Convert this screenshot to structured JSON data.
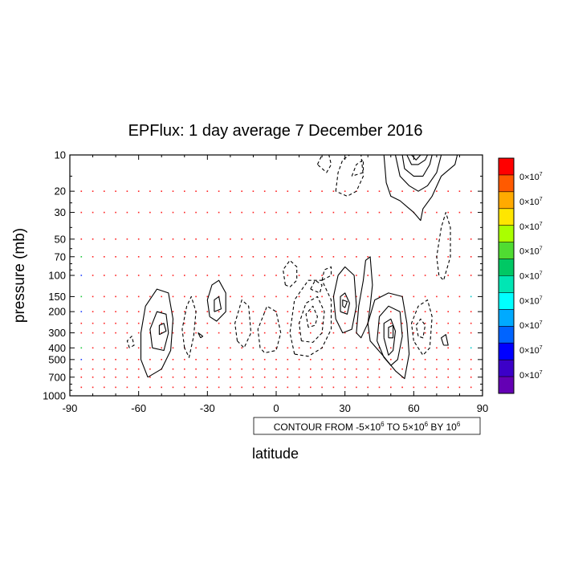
{
  "chart_data": {
    "type": "contour",
    "title": "EPFlux: 1 day average 7 December  2016",
    "xlabel": "latitude",
    "ylabel": "pressure (mb)",
    "xlim": [
      -90,
      90
    ],
    "ylim": [
      1000,
      10
    ],
    "y_scale": "log",
    "x_ticks": [
      "-90",
      "-60",
      "-30",
      "0",
      "30",
      "60",
      "90"
    ],
    "x_tick_values": [
      -90,
      -60,
      -30,
      0,
      30,
      60,
      90
    ],
    "y_ticks": [
      "10",
      "20",
      "30",
      "50",
      "70",
      "100",
      "150",
      "200",
      "300",
      "400",
      "500",
      "700",
      "1000"
    ],
    "y_tick_values": [
      10,
      20,
      30,
      50,
      70,
      100,
      150,
      200,
      300,
      400,
      500,
      700,
      1000
    ],
    "contour_info": {
      "prefix": "CONTOUR FROM -5",
      "times1": "×10",
      "exp1": "6",
      "mid": " TO 5",
      "times2": "×10",
      "exp2": "6",
      "by": " BY 10",
      "exp3": "6"
    },
    "colorbar": {
      "labels": [
        "0×10",
        "0×10",
        "0×10",
        "0×10",
        "0×10",
        "0×10",
        "0×10",
        "0×10",
        "0×10"
      ],
      "exponent": "7",
      "colors": [
        "#ff0000",
        "#ff5a00",
        "#ffaa00",
        "#ffe600",
        "#aaff00",
        "#50dc32",
        "#00c864",
        "#00e6b4",
        "#00ffff",
        "#00aaff",
        "#0064ff",
        "#0000ff",
        "#3c00c8",
        "#6400b4"
      ]
    },
    "arrow_lats": [
      -85,
      -80,
      -75,
      -70,
      -65,
      -60,
      -55,
      -50,
      -45,
      -40,
      -35,
      -30,
      -25,
      -20,
      -15,
      -10,
      -5,
      0,
      5,
      10,
      15,
      20,
      25,
      30,
      35,
      40,
      45,
      50,
      55,
      60,
      65,
      70,
      75,
      80,
      85
    ],
    "arrow_levels": [
      20,
      30,
      50,
      70,
      100,
      150,
      200,
      250,
      300,
      400,
      500,
      600,
      700,
      850
    ],
    "contours": [
      {
        "style": "solid",
        "points": [
          [
            -56,
            700
          ],
          [
            -59,
            500
          ],
          [
            -59,
            300
          ],
          [
            -57,
            180
          ],
          [
            -52,
            130
          ],
          [
            -47,
            140
          ],
          [
            -45,
            230
          ],
          [
            -46,
            420
          ],
          [
            -50,
            600
          ],
          [
            -56,
            700
          ]
        ]
      },
      {
        "style": "solid",
        "points": [
          [
            -54,
            400
          ],
          [
            -55,
            280
          ],
          [
            -52,
            200
          ],
          [
            -48,
            210
          ],
          [
            -47,
            300
          ],
          [
            -49,
            420
          ],
          [
            -54,
            400
          ]
        ]
      },
      {
        "style": "solid",
        "points": [
          [
            -51,
            310
          ],
          [
            -51,
            260
          ],
          [
            -49,
            250
          ],
          [
            -48,
            290
          ],
          [
            -51,
            310
          ]
        ]
      },
      {
        "style": "dashed",
        "points": [
          [
            -40,
            400
          ],
          [
            -41,
            280
          ],
          [
            -39,
            180
          ],
          [
            -37,
            150
          ],
          [
            -35,
            200
          ],
          [
            -36,
            320
          ],
          [
            -38,
            480
          ],
          [
            -40,
            400
          ]
        ]
      },
      {
        "style": "dashed",
        "points": [
          [
            -64,
            400
          ],
          [
            -65,
            350
          ],
          [
            -63,
            320
          ],
          [
            -62,
            380
          ],
          [
            -64,
            400
          ]
        ]
      },
      {
        "style": "solid",
        "points": [
          [
            -33,
            330
          ],
          [
            -34,
            300
          ],
          [
            -32,
            320
          ],
          [
            -33,
            330
          ]
        ]
      },
      {
        "style": "solid",
        "points": [
          [
            -29,
            220
          ],
          [
            -30,
            160
          ],
          [
            -28,
            120
          ],
          [
            -25,
            110
          ],
          [
            -22,
            140
          ],
          [
            -22,
            200
          ],
          [
            -26,
            240
          ],
          [
            -29,
            220
          ]
        ]
      },
      {
        "style": "solid",
        "points": [
          [
            -27,
            200
          ],
          [
            -27,
            160
          ],
          [
            -25,
            150
          ],
          [
            -24,
            190
          ],
          [
            -27,
            200
          ]
        ]
      },
      {
        "style": "dashed",
        "points": [
          [
            -17,
            350
          ],
          [
            -18,
            250
          ],
          [
            -15,
            160
          ],
          [
            -12,
            180
          ],
          [
            -11,
            300
          ],
          [
            -14,
            400
          ],
          [
            -17,
            350
          ]
        ]
      },
      {
        "style": "dashed",
        "points": [
          [
            -7,
            400
          ],
          [
            -8,
            280
          ],
          [
            -4,
            180
          ],
          [
            0,
            200
          ],
          [
            2,
            300
          ],
          [
            0,
            420
          ],
          [
            -5,
            440
          ],
          [
            -7,
            400
          ]
        ]
      },
      {
        "style": "dashed",
        "points": [
          [
            4,
            120
          ],
          [
            3,
            90
          ],
          [
            6,
            75
          ],
          [
            9,
            85
          ],
          [
            9,
            110
          ],
          [
            6,
            125
          ],
          [
            4,
            120
          ]
        ]
      },
      {
        "style": "dashed",
        "points": [
          [
            8,
            450
          ],
          [
            6,
            300
          ],
          [
            8,
            160
          ],
          [
            14,
            110
          ],
          [
            20,
            110
          ],
          [
            24,
            160
          ],
          [
            24,
            280
          ],
          [
            20,
            400
          ],
          [
            14,
            470
          ],
          [
            8,
            450
          ]
        ]
      },
      {
        "style": "dashed",
        "points": [
          [
            11,
            350
          ],
          [
            10,
            250
          ],
          [
            13,
            170
          ],
          [
            18,
            150
          ],
          [
            21,
            200
          ],
          [
            20,
            300
          ],
          [
            16,
            360
          ],
          [
            11,
            350
          ]
        ]
      },
      {
        "style": "dashed",
        "points": [
          [
            14,
            270
          ],
          [
            13,
            210
          ],
          [
            16,
            180
          ],
          [
            18,
            220
          ],
          [
            17,
            260
          ],
          [
            14,
            270
          ]
        ]
      },
      {
        "style": "dashed",
        "points": [
          [
            15,
            130
          ],
          [
            17,
            110
          ],
          [
            20,
            120
          ],
          [
            19,
            140
          ],
          [
            15,
            130
          ]
        ]
      },
      {
        "style": "dashed",
        "points": [
          [
            20,
            110
          ],
          [
            21,
            90
          ],
          [
            24,
            85
          ],
          [
            24,
            100
          ],
          [
            20,
            110
          ]
        ]
      },
      {
        "style": "solid",
        "points": [
          [
            26,
            230
          ],
          [
            25,
            150
          ],
          [
            27,
            100
          ],
          [
            30,
            85
          ],
          [
            34,
            100
          ],
          [
            35,
            180
          ],
          [
            33,
            280
          ],
          [
            29,
            300
          ],
          [
            26,
            230
          ]
        ]
      },
      {
        "style": "solid",
        "points": [
          [
            28,
            200
          ],
          [
            28,
            150
          ],
          [
            30,
            140
          ],
          [
            32,
            170
          ],
          [
            31,
            210
          ],
          [
            28,
            200
          ]
        ]
      },
      {
        "style": "solid",
        "points": [
          [
            29,
            180
          ],
          [
            29,
            160
          ],
          [
            31,
            165
          ],
          [
            30,
            185
          ],
          [
            29,
            180
          ]
        ]
      },
      {
        "style": "solid",
        "points": [
          [
            35,
            300
          ],
          [
            36,
            180
          ],
          [
            38,
            110
          ],
          [
            39,
            75
          ],
          [
            41,
            70
          ],
          [
            42,
            120
          ],
          [
            41,
            180
          ],
          [
            40,
            250
          ],
          [
            37,
            330
          ],
          [
            35,
            300
          ]
        ]
      },
      {
        "style": "solid",
        "points": [
          [
            40,
            250
          ],
          [
            43,
            160
          ],
          [
            49,
            140
          ],
          [
            55,
            150
          ],
          [
            57,
            250
          ],
          [
            58,
            450
          ],
          [
            56,
            720
          ],
          [
            52,
            620
          ],
          [
            46,
            450
          ],
          [
            41,
            350
          ],
          [
            40,
            250
          ]
        ]
      },
      {
        "style": "solid",
        "points": [
          [
            44,
            350
          ],
          [
            45,
            220
          ],
          [
            49,
            180
          ],
          [
            54,
            200
          ],
          [
            55,
            320
          ],
          [
            53,
            500
          ],
          [
            50,
            560
          ],
          [
            47,
            480
          ],
          [
            44,
            350
          ]
        ]
      },
      {
        "style": "solid",
        "points": [
          [
            47,
            330
          ],
          [
            47,
            250
          ],
          [
            50,
            230
          ],
          [
            52,
            290
          ],
          [
            51,
            420
          ],
          [
            49,
            460
          ],
          [
            47,
            330
          ]
        ]
      },
      {
        "style": "solid",
        "points": [
          [
            49,
            330
          ],
          [
            49,
            270
          ],
          [
            51,
            260
          ],
          [
            51,
            330
          ],
          [
            49,
            330
          ]
        ]
      },
      {
        "style": "dashed",
        "points": [
          [
            60,
            350
          ],
          [
            59,
            250
          ],
          [
            62,
            180
          ],
          [
            66,
            160
          ],
          [
            68,
            220
          ],
          [
            67,
            400
          ],
          [
            64,
            460
          ],
          [
            60,
            350
          ]
        ]
      },
      {
        "style": "dashed",
        "points": [
          [
            62,
            320
          ],
          [
            61,
            260
          ],
          [
            63,
            230
          ],
          [
            65,
            260
          ],
          [
            64,
            330
          ],
          [
            62,
            320
          ]
        ]
      },
      {
        "style": "solid",
        "points": [
          [
            73,
            380
          ],
          [
            72,
            330
          ],
          [
            74,
            310
          ],
          [
            75,
            380
          ],
          [
            73,
            380
          ]
        ]
      },
      {
        "style": "dashed",
        "points": [
          [
            71,
            100
          ],
          [
            70,
            70
          ],
          [
            72,
            40
          ],
          [
            74,
            30
          ],
          [
            76,
            40
          ],
          [
            76,
            70
          ],
          [
            73,
            110
          ],
          [
            71,
            100
          ]
        ]
      },
      {
        "style": "dashed",
        "points": [
          [
            18,
            12
          ],
          [
            20,
            10
          ],
          [
            23,
            10
          ],
          [
            24,
            12
          ],
          [
            22,
            14
          ],
          [
            18,
            12
          ]
        ]
      },
      {
        "style": "dashed",
        "points": [
          [
            26,
            20
          ],
          [
            27,
            14
          ],
          [
            29,
            11
          ],
          [
            32,
            10
          ],
          [
            37,
            10
          ],
          [
            38,
            15
          ],
          [
            35,
            20
          ],
          [
            31,
            22
          ],
          [
            26,
            20
          ]
        ]
      },
      {
        "style": "dashed",
        "points": [
          [
            33,
            15
          ],
          [
            35,
            12
          ],
          [
            38,
            11
          ],
          [
            38,
            14
          ],
          [
            33,
            15
          ]
        ]
      },
      {
        "style": "solid",
        "points": [
          [
            47,
            10
          ],
          [
            48,
            17
          ],
          [
            50,
            22
          ],
          [
            54,
            24
          ],
          [
            60,
            30
          ],
          [
            63,
            35
          ],
          [
            64,
            28
          ],
          [
            68,
            22
          ],
          [
            72,
            15
          ],
          [
            78,
            12
          ],
          [
            79,
            10
          ]
        ]
      },
      {
        "style": "solid",
        "points": [
          [
            52,
            10
          ],
          [
            54,
            15
          ],
          [
            58,
            18
          ],
          [
            62,
            20
          ],
          [
            66,
            18
          ],
          [
            70,
            14
          ],
          [
            72,
            10
          ]
        ]
      },
      {
        "style": "solid",
        "points": [
          [
            55,
            10
          ],
          [
            56,
            13
          ],
          [
            60,
            15
          ],
          [
            64,
            15
          ],
          [
            67,
            12
          ],
          [
            68,
            10
          ]
        ]
      },
      {
        "style": "solid",
        "points": [
          [
            57,
            10
          ],
          [
            59,
            12
          ],
          [
            62,
            12
          ],
          [
            65,
            11
          ],
          [
            66,
            10
          ]
        ]
      },
      {
        "style": "solid",
        "points": [
          [
            59,
            10
          ],
          [
            61,
            11
          ],
          [
            63,
            10
          ]
        ]
      }
    ]
  }
}
